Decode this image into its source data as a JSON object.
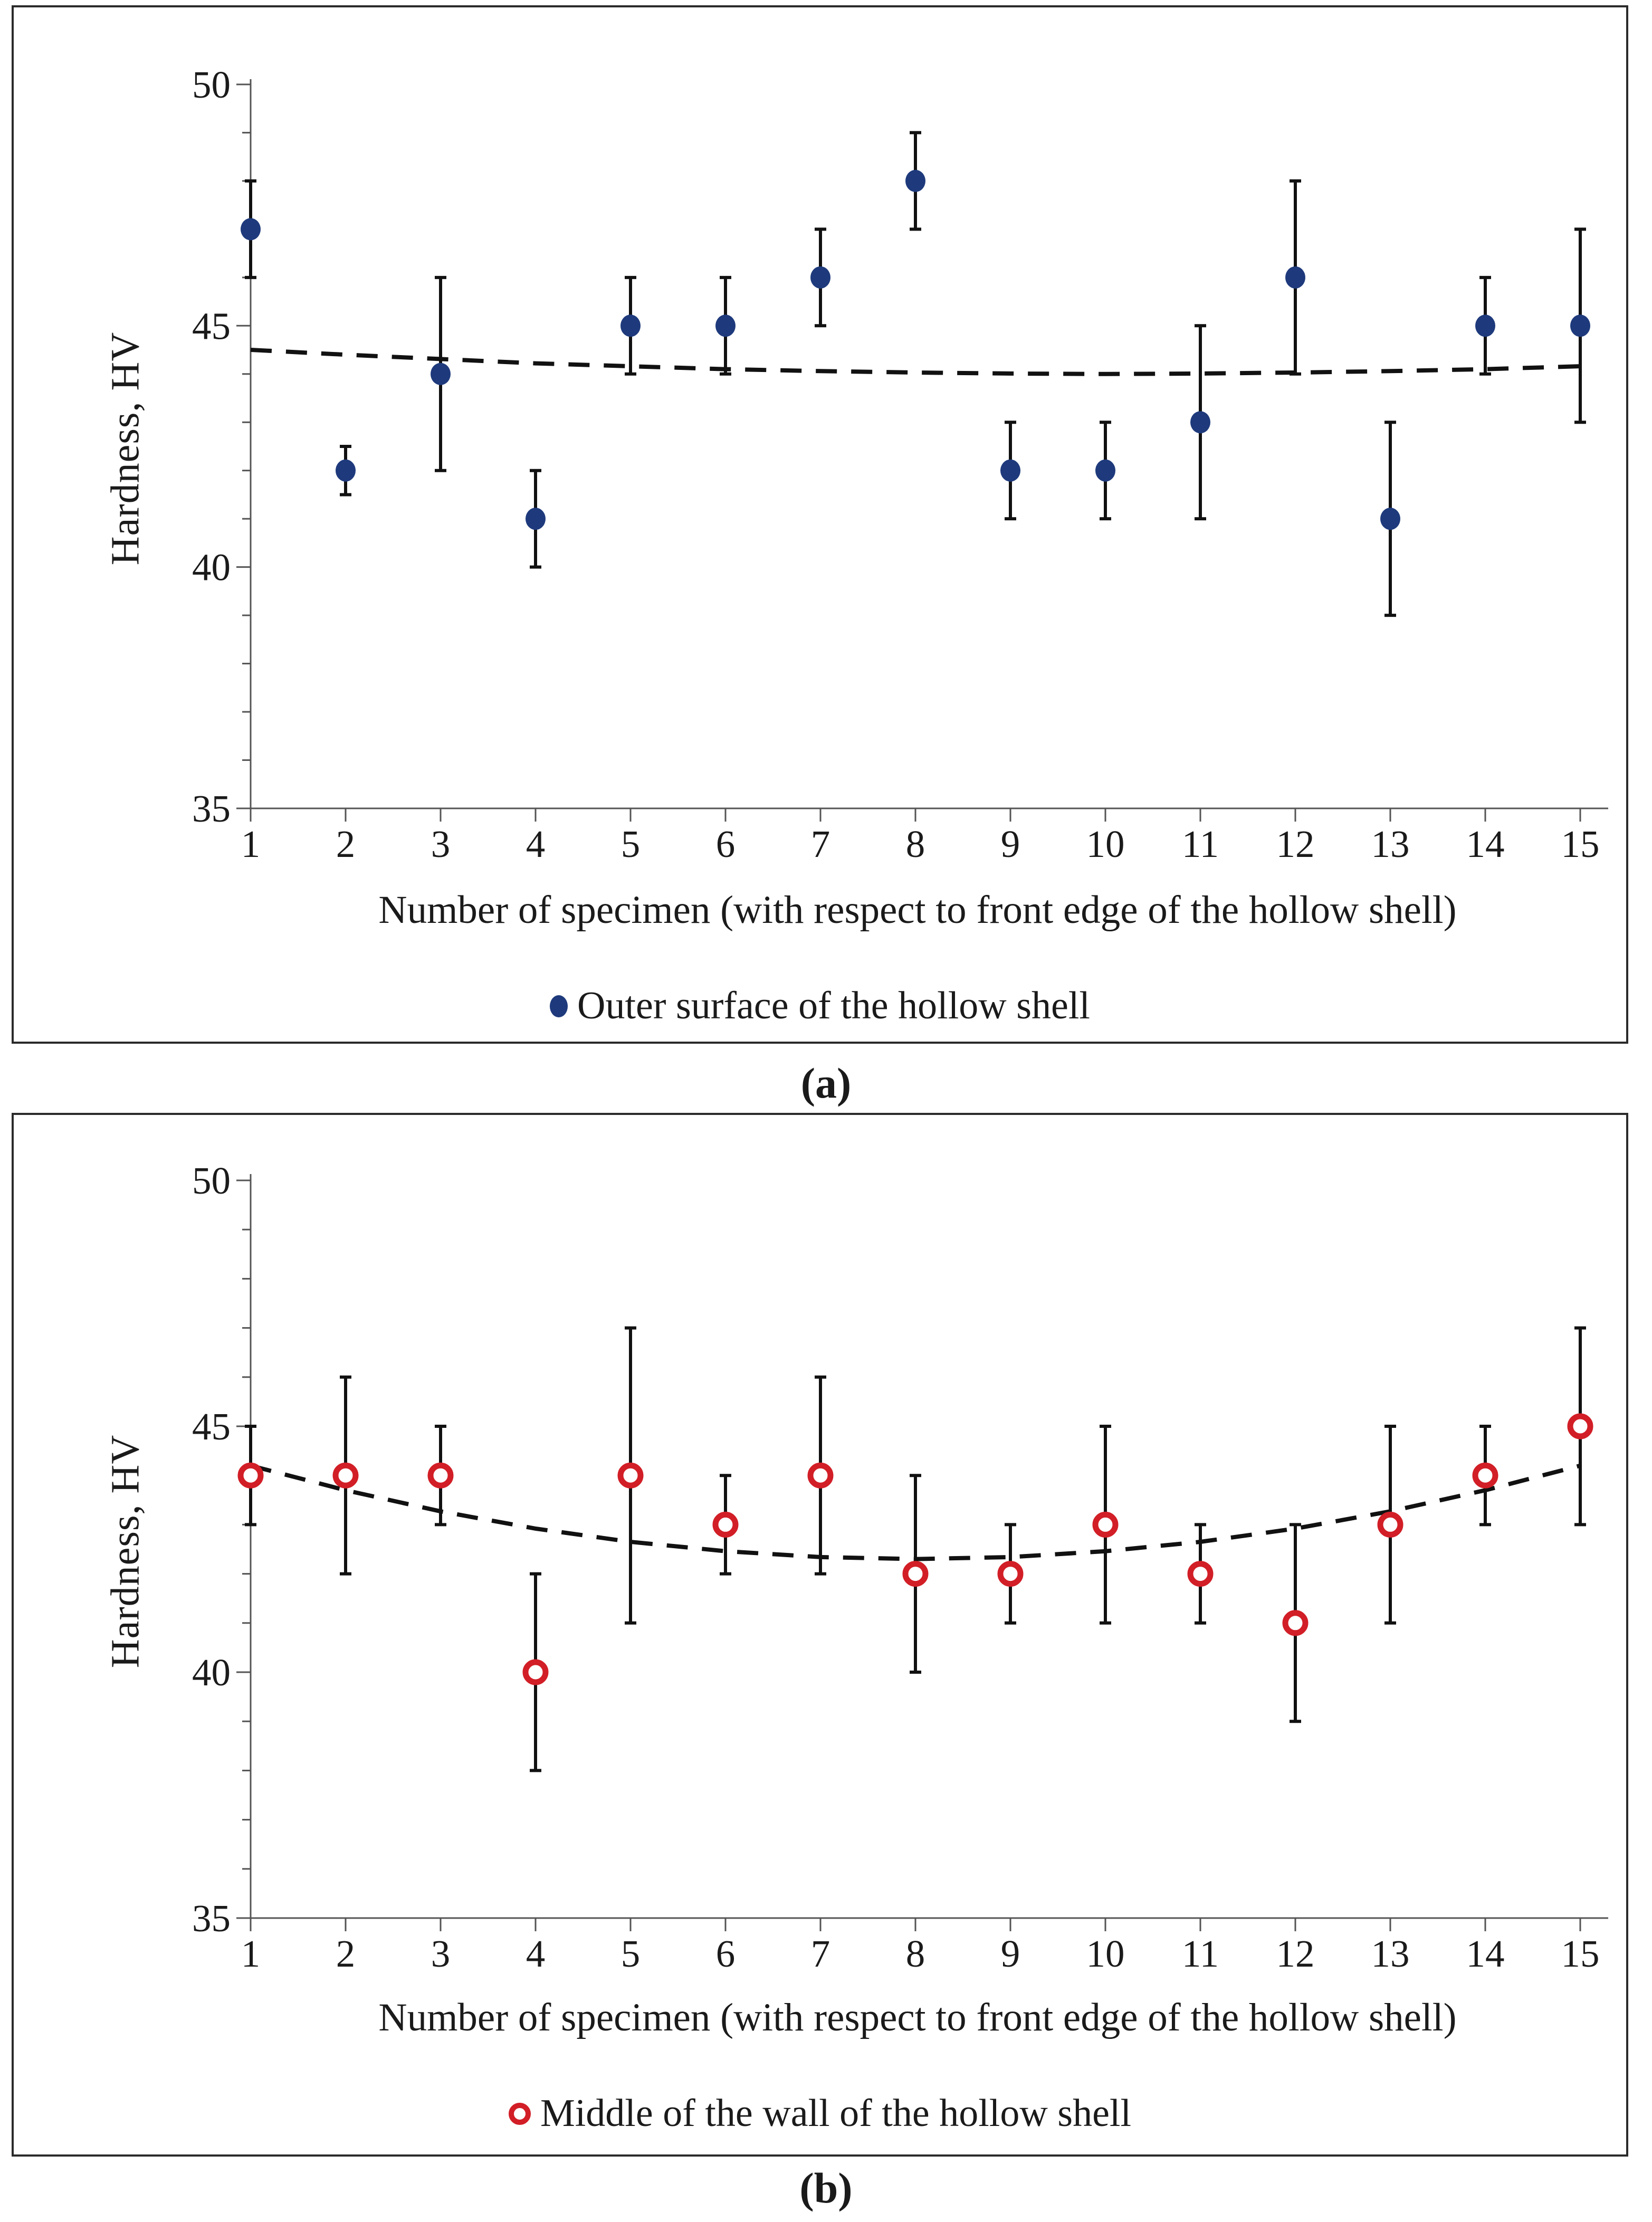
{
  "page": {
    "background": "#ffffff"
  },
  "captions": {
    "a": "(a)",
    "b": "(b)"
  },
  "chart_data": [
    {
      "id": "a",
      "type": "scatter",
      "panel_caption": "(a)",
      "title": "",
      "xlabel": "Number of specimen (with respect to front edge of the hollow shell)",
      "ylabel": "Hardness, HV",
      "xlim": [
        1,
        15
      ],
      "ylim": [
        35,
        50
      ],
      "x_ticks": [
        1,
        2,
        3,
        4,
        5,
        6,
        7,
        8,
        9,
        10,
        11,
        12,
        13,
        14,
        15
      ],
      "y_major_ticks": [
        35,
        40,
        45,
        50
      ],
      "y_minor_step": 1,
      "grid": false,
      "legend_position": "bottom-center",
      "series": [
        {
          "name": "Outer surface of the hollow shell",
          "marker": "filled-circle",
          "color": "#1e3a7c",
          "x": [
            1,
            2,
            3,
            4,
            5,
            6,
            7,
            8,
            9,
            10,
            11,
            12,
            13,
            14,
            15
          ],
          "y": [
            47,
            42,
            44,
            41,
            45,
            45,
            46,
            48,
            42,
            42,
            43,
            46,
            41,
            45,
            45
          ],
          "y_err": [
            1,
            0.5,
            2,
            1,
            1,
            1,
            1,
            1,
            1,
            1,
            2,
            2,
            2,
            1,
            2
          ]
        }
      ],
      "trendline": {
        "style": "dashed",
        "color": "#111111",
        "x": [
          1,
          2,
          3,
          4,
          5,
          6,
          7,
          8,
          9,
          10,
          11,
          12,
          13,
          14,
          15
        ],
        "y": [
          44.5,
          44.4,
          44.31,
          44.22,
          44.16,
          44.1,
          44.06,
          44.03,
          44.01,
          44.0,
          44.01,
          44.03,
          44.06,
          44.1,
          44.16
        ]
      }
    },
    {
      "id": "b",
      "type": "scatter",
      "panel_caption": "(b)",
      "title": "",
      "xlabel": "Number of specimen (with respect to front edge of the hollow shell)",
      "ylabel": "Hardness, HV",
      "xlim": [
        1,
        15
      ],
      "ylim": [
        35,
        50
      ],
      "x_ticks": [
        1,
        2,
        3,
        4,
        5,
        6,
        7,
        8,
        9,
        10,
        11,
        12,
        13,
        14,
        15
      ],
      "y_major_ticks": [
        35,
        40,
        45,
        50
      ],
      "y_minor_step": 1,
      "grid": false,
      "legend_position": "bottom-center",
      "series": [
        {
          "name": "Middle of the wall of the hollow shell",
          "marker": "open-circle",
          "color": "#d21e26",
          "x": [
            1,
            2,
            3,
            4,
            5,
            6,
            7,
            8,
            9,
            10,
            11,
            12,
            13,
            14,
            15
          ],
          "y": [
            44,
            44,
            44,
            40,
            44,
            43,
            44,
            42,
            42,
            43,
            42,
            41,
            43,
            44,
            45
          ],
          "y_err": [
            1,
            2,
            1,
            2,
            3,
            1,
            2,
            2,
            1,
            2,
            1,
            2,
            2,
            1,
            2
          ]
        }
      ],
      "trendline": {
        "style": "dashed",
        "color": "#111111",
        "x": [
          1,
          2,
          3,
          4,
          5,
          6,
          7,
          8,
          9,
          10,
          11,
          12,
          13,
          14,
          15
        ],
        "y": [
          44.2,
          43.7,
          43.27,
          42.92,
          42.65,
          42.46,
          42.34,
          42.3,
          42.34,
          42.46,
          42.65,
          42.92,
          43.27,
          43.7,
          44.2
        ]
      }
    }
  ]
}
